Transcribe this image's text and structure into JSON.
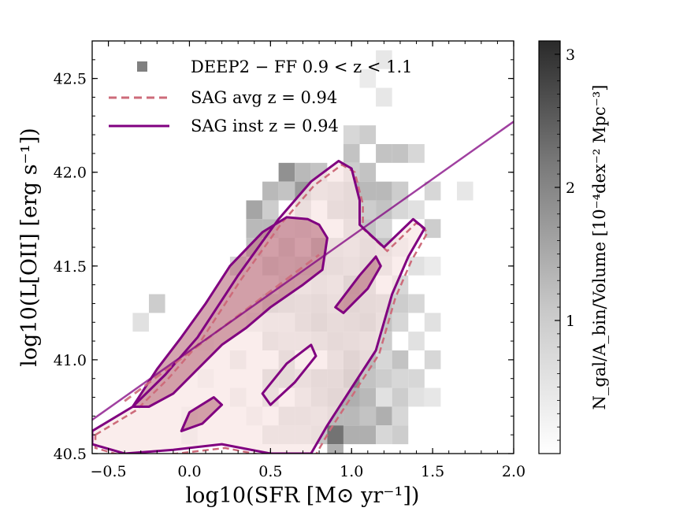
{
  "chart_data": {
    "type": "heatmap",
    "xlabel": "log10(SFR [M⊙ yr⁻¹])",
    "ylabel": "log10(L[OII] [erg s⁻¹])",
    "xlim": [
      -0.6,
      2.0
    ],
    "ylim": [
      40.5,
      42.7
    ],
    "xticks": [
      -0.5,
      0.0,
      0.5,
      1.0,
      1.5,
      2.0
    ],
    "xtick_labels": [
      "−0.5",
      "0.0",
      "0.5",
      "1.0",
      "1.5",
      "2.0"
    ],
    "yticks": [
      40.5,
      41.0,
      41.5,
      42.0,
      42.5
    ],
    "ytick_labels": [
      "40.5",
      "41.0",
      "41.5",
      "42.0",
      "42.5"
    ],
    "legend": [
      {
        "label": "DEEP2 − FF  0.9 < z < 1.1",
        "marker": "square",
        "color": "#808080"
      },
      {
        "label": "SAG avg z = 0.94",
        "style": "dashed",
        "color": "#cd6b7a"
      },
      {
        "label": "SAG inst z = 0.94",
        "style": "solid",
        "color": "#800080"
      }
    ],
    "legend_position": "upper-left",
    "colorbar": {
      "label": "N_gal/A_bin/Volume [10⁻⁴dex⁻² Mpc⁻³]",
      "ticks": [
        1,
        2,
        3
      ],
      "range": [
        0,
        3.1
      ],
      "cmap": "Greys"
    },
    "heatmap_bin_size": 0.1,
    "heatmap_cells": [
      [
        -0.3,
        41.2,
        0.15
      ],
      [
        -0.2,
        41.3,
        0.25
      ],
      [
        0.0,
        40.6,
        0.12
      ],
      [
        0.0,
        40.7,
        0.1
      ],
      [
        0.1,
        41.1,
        0.12
      ],
      [
        0.1,
        40.9,
        0.1
      ],
      [
        0.3,
        41.5,
        0.2
      ],
      [
        0.3,
        41.0,
        0.18
      ],
      [
        0.3,
        40.8,
        0.15
      ],
      [
        0.4,
        41.8,
        0.45
      ],
      [
        0.4,
        41.7,
        0.35
      ],
      [
        0.4,
        41.6,
        0.3
      ],
      [
        0.4,
        41.2,
        0.15
      ],
      [
        0.4,
        40.7,
        0.12
      ],
      [
        0.5,
        41.9,
        0.35
      ],
      [
        0.5,
        41.8,
        0.25
      ],
      [
        0.5,
        41.7,
        0.35
      ],
      [
        0.5,
        41.5,
        0.5
      ],
      [
        0.5,
        41.3,
        0.45
      ],
      [
        0.5,
        41.2,
        0.2
      ],
      [
        0.5,
        41.1,
        0.3
      ],
      [
        0.5,
        40.9,
        0.35
      ],
      [
        0.5,
        40.8,
        0.3
      ],
      [
        0.5,
        40.6,
        0.25
      ],
      [
        0.6,
        42.0,
        0.55
      ],
      [
        0.6,
        41.9,
        0.3
      ],
      [
        0.6,
        41.7,
        0.15
      ],
      [
        0.6,
        41.6,
        0.5
      ],
      [
        0.6,
        41.5,
        0.3
      ],
      [
        0.6,
        41.4,
        0.35
      ],
      [
        0.6,
        41.3,
        0.4
      ],
      [
        0.6,
        41.2,
        0.2
      ],
      [
        0.6,
        41.1,
        0.25
      ],
      [
        0.6,
        41.0,
        0.35
      ],
      [
        0.6,
        40.9,
        0.4
      ],
      [
        0.6,
        40.7,
        0.3
      ],
      [
        0.6,
        40.6,
        0.25
      ],
      [
        0.7,
        42.0,
        0.35
      ],
      [
        0.7,
        41.9,
        0.5
      ],
      [
        0.7,
        41.8,
        0.3
      ],
      [
        0.7,
        41.7,
        0.25
      ],
      [
        0.7,
        41.5,
        0.45
      ],
      [
        0.7,
        41.4,
        0.25
      ],
      [
        0.7,
        41.3,
        0.35
      ],
      [
        0.7,
        41.2,
        0.35
      ],
      [
        0.7,
        41.1,
        0.25
      ],
      [
        0.7,
        40.9,
        0.3
      ],
      [
        0.7,
        40.8,
        0.2
      ],
      [
        0.7,
        40.7,
        0.3
      ],
      [
        0.7,
        40.6,
        0.25
      ],
      [
        0.8,
        42.0,
        0.3
      ],
      [
        0.8,
        41.9,
        0.25
      ],
      [
        0.8,
        41.6,
        0.7
      ],
      [
        0.8,
        41.5,
        0.4
      ],
      [
        0.8,
        41.4,
        0.3
      ],
      [
        0.8,
        41.3,
        0.4
      ],
      [
        0.8,
        41.2,
        0.45
      ],
      [
        0.8,
        41.1,
        0.3
      ],
      [
        0.8,
        40.9,
        0.4
      ],
      [
        0.8,
        40.8,
        0.35
      ],
      [
        0.8,
        40.7,
        0.25
      ],
      [
        0.8,
        40.6,
        0.3
      ],
      [
        0.9,
        41.9,
        0.3
      ],
      [
        0.9,
        41.8,
        0.35
      ],
      [
        0.9,
        41.6,
        0.3
      ],
      [
        0.9,
        41.5,
        0.35
      ],
      [
        0.9,
        41.4,
        0.25
      ],
      [
        0.9,
        41.3,
        0.3
      ],
      [
        0.9,
        41.2,
        0.35
      ],
      [
        0.9,
        41.1,
        0.4
      ],
      [
        0.9,
        41.0,
        0.3
      ],
      [
        0.9,
        40.9,
        0.4
      ],
      [
        0.9,
        40.8,
        0.45
      ],
      [
        0.9,
        40.7,
        0.35
      ],
      [
        0.9,
        40.6,
        0.7
      ],
      [
        0.9,
        40.5,
        0.4
      ],
      [
        1.0,
        42.2,
        0.2
      ],
      [
        1.0,
        42.1,
        0.3
      ],
      [
        1.0,
        42.0,
        0.25
      ],
      [
        1.0,
        41.9,
        0.4
      ],
      [
        1.0,
        41.8,
        0.4
      ],
      [
        1.0,
        41.7,
        0.3
      ],
      [
        1.0,
        41.6,
        0.25
      ],
      [
        1.0,
        41.5,
        0.3
      ],
      [
        1.0,
        41.4,
        0.5
      ],
      [
        1.0,
        41.3,
        0.45
      ],
      [
        1.0,
        41.2,
        0.4
      ],
      [
        1.0,
        41.1,
        0.35
      ],
      [
        1.0,
        41.0,
        0.5
      ],
      [
        1.0,
        40.9,
        0.6
      ],
      [
        1.0,
        40.8,
        0.4
      ],
      [
        1.0,
        40.7,
        0.35
      ],
      [
        1.0,
        40.6,
        0.4
      ],
      [
        1.1,
        42.5,
        0.1
      ],
      [
        1.1,
        42.2,
        0.25
      ],
      [
        1.1,
        42.0,
        0.3
      ],
      [
        1.1,
        41.9,
        0.35
      ],
      [
        1.1,
        41.8,
        0.25
      ],
      [
        1.1,
        41.7,
        0.3
      ],
      [
        1.1,
        41.6,
        0.35
      ],
      [
        1.1,
        41.5,
        0.4
      ],
      [
        1.1,
        41.4,
        0.35
      ],
      [
        1.1,
        41.3,
        0.4
      ],
      [
        1.1,
        41.2,
        0.45
      ],
      [
        1.1,
        41.1,
        0.3
      ],
      [
        1.1,
        41.0,
        0.35
      ],
      [
        1.1,
        40.9,
        0.3
      ],
      [
        1.1,
        40.8,
        0.35
      ],
      [
        1.1,
        40.7,
        0.3
      ],
      [
        1.1,
        40.6,
        0.4
      ],
      [
        1.2,
        42.6,
        0.12
      ],
      [
        1.2,
        42.4,
        0.12
      ],
      [
        1.2,
        42.1,
        0.3
      ],
      [
        1.2,
        41.9,
        0.35
      ],
      [
        1.2,
        41.8,
        0.3
      ],
      [
        1.2,
        41.7,
        0.2
      ],
      [
        1.2,
        41.6,
        0.3
      ],
      [
        1.2,
        41.5,
        0.25
      ],
      [
        1.2,
        41.3,
        0.35
      ],
      [
        1.2,
        41.2,
        0.3
      ],
      [
        1.2,
        41.1,
        0.25
      ],
      [
        1.2,
        41.0,
        0.2
      ],
      [
        1.2,
        40.9,
        0.25
      ],
      [
        1.2,
        40.8,
        0.15
      ],
      [
        1.2,
        40.7,
        0.4
      ],
      [
        1.2,
        40.6,
        0.2
      ],
      [
        1.3,
        42.1,
        0.3
      ],
      [
        1.3,
        41.9,
        0.25
      ],
      [
        1.3,
        41.8,
        0.2
      ],
      [
        1.3,
        41.6,
        0.15
      ],
      [
        1.3,
        41.4,
        0.2
      ],
      [
        1.3,
        41.3,
        0.25
      ],
      [
        1.3,
        41.2,
        0.2
      ],
      [
        1.3,
        41.0,
        0.3
      ],
      [
        1.3,
        40.9,
        0.2
      ],
      [
        1.3,
        40.8,
        0.25
      ],
      [
        1.3,
        40.7,
        0.2
      ],
      [
        1.3,
        40.6,
        0.25
      ],
      [
        1.4,
        42.1,
        0.2
      ],
      [
        1.4,
        41.8,
        0.15
      ],
      [
        1.4,
        41.5,
        0.15
      ],
      [
        1.4,
        41.3,
        0.2
      ],
      [
        1.4,
        41.1,
        0.15
      ],
      [
        1.4,
        40.9,
        0.2
      ],
      [
        1.4,
        40.8,
        0.15
      ],
      [
        1.5,
        41.9,
        0.2
      ],
      [
        1.5,
        41.7,
        0.25
      ],
      [
        1.5,
        41.5,
        0.1
      ],
      [
        1.5,
        41.2,
        0.15
      ],
      [
        1.5,
        41.0,
        0.2
      ],
      [
        1.5,
        40.8,
        0.12
      ],
      [
        1.7,
        41.9,
        0.12
      ]
    ],
    "inst_line": [
      [
        -0.6,
        40.68
      ],
      [
        2.0,
        42.27
      ]
    ],
    "avg_line": [
      [
        -0.4,
        40.78
      ],
      [
        0.8,
        41.56
      ]
    ],
    "contours_inst": [
      [
        [
          -0.6,
          40.62
        ],
        [
          -0.35,
          40.75
        ],
        [
          -0.15,
          40.92
        ],
        [
          0.05,
          41.12
        ],
        [
          0.3,
          41.45
        ],
        [
          0.55,
          41.75
        ],
        [
          0.75,
          41.95
        ],
        [
          0.92,
          42.06
        ],
        [
          1.0,
          42.02
        ],
        [
          1.05,
          41.85
        ],
        [
          1.05,
          41.72
        ],
        [
          1.2,
          41.6
        ],
        [
          1.38,
          41.75
        ],
        [
          1.45,
          41.7
        ],
        [
          1.35,
          41.55
        ],
        [
          1.25,
          41.35
        ],
        [
          1.15,
          41.05
        ],
        [
          1.0,
          40.85
        ],
        [
          0.85,
          40.65
        ],
        [
          0.75,
          40.5
        ],
        [
          0.5,
          40.5
        ],
        [
          0.2,
          40.55
        ],
        [
          -0.1,
          40.52
        ],
        [
          -0.4,
          40.5
        ],
        [
          -0.6,
          40.55
        ]
      ],
      [
        [
          -0.35,
          40.75
        ],
        [
          -0.2,
          40.95
        ],
        [
          -0.05,
          41.12
        ],
        [
          0.1,
          41.3
        ],
        [
          0.25,
          41.5
        ],
        [
          0.45,
          41.68
        ],
        [
          0.6,
          41.76
        ],
        [
          0.73,
          41.75
        ],
        [
          0.8,
          41.72
        ],
        [
          0.85,
          41.65
        ],
        [
          0.82,
          41.48
        ],
        [
          0.7,
          41.4
        ],
        [
          0.5,
          41.28
        ],
        [
          0.35,
          41.17
        ],
        [
          0.2,
          41.08
        ],
        [
          0.05,
          40.95
        ],
        [
          -0.1,
          40.82
        ],
        [
          -0.25,
          40.75
        ]
      ],
      [
        [
          0.9,
          41.28
        ],
        [
          1.05,
          41.45
        ],
        [
          1.15,
          41.55
        ],
        [
          1.18,
          41.5
        ],
        [
          1.1,
          41.38
        ],
        [
          0.95,
          41.25
        ]
      ],
      [
        [
          0.45,
          40.82
        ],
        [
          0.6,
          40.98
        ],
        [
          0.75,
          41.08
        ],
        [
          0.78,
          41.02
        ],
        [
          0.65,
          40.88
        ],
        [
          0.5,
          40.76
        ]
      ],
      [
        [
          0.0,
          40.72
        ],
        [
          0.15,
          40.8
        ],
        [
          0.2,
          40.76
        ],
        [
          0.08,
          40.66
        ],
        [
          -0.05,
          40.62
        ]
      ]
    ],
    "contours_avg_fill": [
      [
        [
          -0.35,
          40.75
        ],
        [
          -0.2,
          40.95
        ],
        [
          -0.05,
          41.12
        ],
        [
          0.1,
          41.3
        ],
        [
          0.25,
          41.5
        ],
        [
          0.45,
          41.68
        ],
        [
          0.6,
          41.76
        ],
        [
          0.73,
          41.75
        ],
        [
          0.8,
          41.72
        ],
        [
          0.85,
          41.65
        ],
        [
          0.82,
          41.48
        ],
        [
          0.7,
          41.4
        ],
        [
          0.5,
          41.28
        ],
        [
          0.35,
          41.17
        ],
        [
          0.2,
          41.08
        ],
        [
          0.05,
          40.95
        ],
        [
          -0.1,
          40.82
        ],
        [
          -0.25,
          40.75
        ]
      ],
      [
        [
          0.9,
          41.28
        ],
        [
          1.05,
          41.45
        ],
        [
          1.15,
          41.55
        ],
        [
          1.18,
          41.5
        ],
        [
          1.1,
          41.38
        ],
        [
          0.95,
          41.25
        ]
      ],
      [
        [
          0.0,
          40.72
        ],
        [
          0.15,
          40.8
        ],
        [
          0.2,
          40.76
        ],
        [
          0.08,
          40.66
        ],
        [
          -0.05,
          40.62
        ]
      ]
    ]
  }
}
